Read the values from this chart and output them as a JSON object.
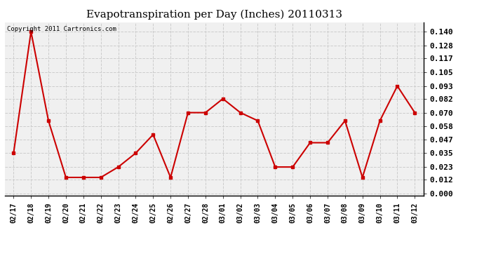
{
  "title": "Evapotranspiration per Day (Inches) 20110313",
  "copyright_text": "Copyright 2011 Cartronics.com",
  "line_color": "#cc0000",
  "bg_color": "#ffffff",
  "plot_bg_color": "#f0f0f0",
  "grid_color": "#cccccc",
  "categories": [
    "02/17",
    "02/18",
    "02/19",
    "02/20",
    "02/21",
    "02/22",
    "02/23",
    "02/24",
    "02/25",
    "02/26",
    "02/27",
    "02/28",
    "03/01",
    "03/02",
    "03/03",
    "03/04",
    "03/05",
    "03/06",
    "03/07",
    "03/08",
    "03/09",
    "03/10",
    "03/11",
    "03/12"
  ],
  "values": [
    0.035,
    0.14,
    0.063,
    0.014,
    0.014,
    0.014,
    0.023,
    0.035,
    0.051,
    0.014,
    0.07,
    0.07,
    0.082,
    0.07,
    0.063,
    0.023,
    0.023,
    0.044,
    0.044,
    0.063,
    0.014,
    0.063,
    0.093,
    0.07
  ],
  "yticks": [
    0.0,
    0.012,
    0.023,
    0.035,
    0.047,
    0.058,
    0.07,
    0.082,
    0.093,
    0.105,
    0.117,
    0.128,
    0.14
  ],
  "ylim": [
    -0.002,
    0.148
  ],
  "title_fontsize": 11,
  "copyright_fontsize": 6.5,
  "tick_fontsize": 7,
  "ytick_fontsize": 8
}
